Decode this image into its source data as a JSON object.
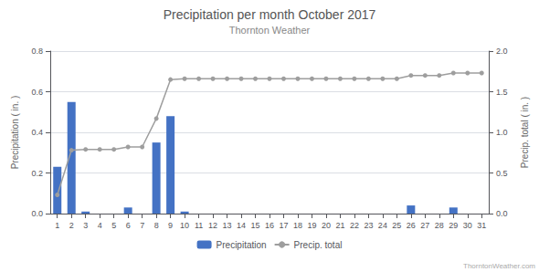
{
  "chart_data": {
    "type": "bar",
    "title": "Precipitation per month October 2017",
    "subtitle": "Thornton Weather",
    "annotations": [
      "ThorntonWeather.com"
    ],
    "x": [
      1,
      2,
      3,
      4,
      5,
      6,
      7,
      8,
      9,
      10,
      11,
      12,
      13,
      14,
      15,
      16,
      17,
      18,
      19,
      20,
      21,
      22,
      23,
      24,
      25,
      26,
      27,
      28,
      29,
      30,
      31
    ],
    "xlim": [
      0.5,
      31.5
    ],
    "xticks": [
      1,
      2,
      3,
      4,
      5,
      6,
      7,
      8,
      9,
      10,
      11,
      12,
      13,
      14,
      15,
      16,
      17,
      18,
      19,
      20,
      21,
      22,
      23,
      24,
      25,
      26,
      27,
      28,
      29,
      30,
      31
    ],
    "ylabel": "Precipitation ( in. )",
    "y2label": "Precip. total ( in. )",
    "ylim": [
      0,
      0.8
    ],
    "yticks": [
      {
        "value": 0,
        "label": "0.0"
      },
      0.2,
      0.4,
      0.6,
      0.8
    ],
    "y2lim": [
      0,
      2.0
    ],
    "y2ticks": [
      {
        "value": 0,
        "label": "0.0"
      },
      0.5,
      {
        "value": 1,
        "label": "1.0"
      },
      1.5,
      {
        "value": 2,
        "label": "2.0"
      }
    ],
    "grid": true,
    "legend": "bottom",
    "series": [
      {
        "name": "Precipitation",
        "type": "bar",
        "color": "#4472C4",
        "values": [
          0.23,
          0.55,
          0.01,
          0.0,
          0.0,
          0.03,
          0.0,
          0.35,
          0.48,
          0.01,
          0.0,
          0.0,
          0.0,
          0.0,
          0.0,
          0.0,
          0.0,
          0.0,
          0.0,
          0.0,
          0.0,
          0.0,
          0.0,
          0.0,
          0.0,
          0.04,
          0.0,
          0.0,
          0.03,
          0.0,
          0.0
        ]
      },
      {
        "name": "Precip. total",
        "type": "line",
        "axis": "y2",
        "color": "#9e9e9e",
        "marker": "circle",
        "values": [
          0.23,
          0.78,
          0.79,
          0.79,
          0.79,
          0.82,
          0.82,
          1.17,
          1.65,
          1.66,
          1.66,
          1.66,
          1.66,
          1.66,
          1.66,
          1.66,
          1.66,
          1.66,
          1.66,
          1.66,
          1.66,
          1.66,
          1.66,
          1.66,
          1.66,
          1.7,
          1.7,
          1.7,
          1.73,
          1.73,
          1.73
        ]
      }
    ]
  }
}
